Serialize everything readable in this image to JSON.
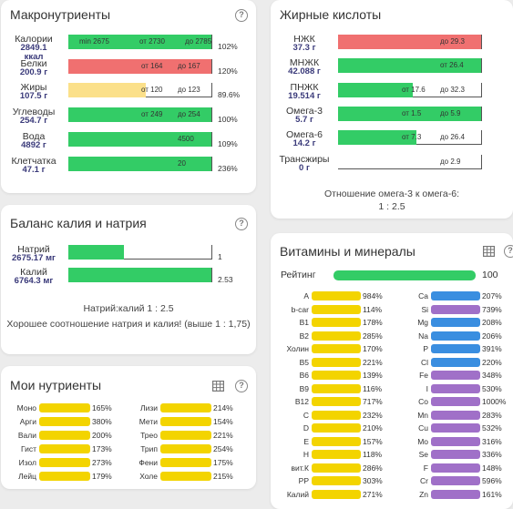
{
  "colors": {
    "green": "#33cc66",
    "red": "#f07070",
    "yellow": "#fbe08a",
    "blue": "#3a8ee0",
    "purple": "#a070c8",
    "vit_yellow": "#f3d400"
  },
  "macro": {
    "title": "Макронутриенты",
    "rows": [
      {
        "name": "Калории",
        "value": "2849.1 ккал",
        "value1": "2849.1",
        "value2": "ккал",
        "fill": 1.0,
        "color": "green",
        "texts": [
          "min 2675",
          "от 2730",
          "до 2785"
        ],
        "pct": "102%"
      },
      {
        "name": "Белки",
        "value": "200.9 г",
        "fill": 1.0,
        "color": "red",
        "texts": [
          "от 164",
          "до 167"
        ],
        "pct": "120%"
      },
      {
        "name": "Жиры",
        "value": "107.5 г",
        "fill": 0.54,
        "color": "yellow",
        "texts": [
          "от 120",
          "до 123"
        ],
        "pct": "89.6%"
      },
      {
        "name": "Углеводы",
        "value": "254.7 г",
        "fill": 1.0,
        "color": "green",
        "texts": [
          "от 249",
          "до 254"
        ],
        "pct": "100%"
      },
      {
        "name": "Вода",
        "value": "4892 г",
        "fill": 1.0,
        "color": "green",
        "texts": [
          "4500"
        ],
        "pct": "109%"
      },
      {
        "name": "Клетчатка",
        "value": "47.1 г",
        "fill": 1.0,
        "color": "green",
        "texts": [
          "20"
        ],
        "pct": "236%"
      }
    ]
  },
  "fatty": {
    "title": "Жирные кислоты",
    "rows": [
      {
        "name": "НЖК",
        "value": "37.3 г",
        "fill": 1.0,
        "color": "red",
        "texts": [
          "до 29.3"
        ]
      },
      {
        "name": "МНЖК",
        "value": "42.088 г",
        "fill": 1.0,
        "color": "green",
        "texts": [
          "от 26.4"
        ]
      },
      {
        "name": "ПНЖК",
        "value": "19.514 г",
        "fill": 0.52,
        "color": "green",
        "texts": [
          "от 17.6",
          "до 32.3"
        ]
      },
      {
        "name": "Омега-3",
        "value": "5.7 г",
        "fill": 1.0,
        "color": "green",
        "texts": [
          "от 1.5",
          "до 5.9"
        ]
      },
      {
        "name": "Омега-6",
        "value": "14.2 г",
        "fill": 0.55,
        "color": "green",
        "texts": [
          "от 7.3",
          "до 26.4"
        ]
      },
      {
        "name": "Трансжиры",
        "value": "0 г",
        "fill": 0.0,
        "color": "green",
        "texts": [
          "до 2.9"
        ]
      }
    ],
    "ratio_label": "Отношение омега-3 к омега-6:",
    "ratio_value": "1 : 2.5"
  },
  "kna": {
    "title": "Баланс калия и натрия",
    "rows": [
      {
        "name": "Натрий",
        "value": "2675.17 мг",
        "fill": 0.39,
        "color": "green",
        "pct": "1"
      },
      {
        "name": "Калий",
        "value": "6764.3 мг",
        "fill": 1.0,
        "color": "green",
        "pct": "2.53"
      }
    ],
    "ratio": "Натрий:калий 1 : 2.5",
    "note": "Хорошее соотношение натрия и калия! (выше 1 : 1,75)"
  },
  "my": {
    "title": "Мои нутриенты",
    "left": [
      {
        "name": "Моно",
        "pct": "165%"
      },
      {
        "name": "Арги",
        "pct": "380%"
      },
      {
        "name": "Вали",
        "pct": "200%"
      },
      {
        "name": "Гист",
        "pct": "173%"
      },
      {
        "name": "Изол",
        "pct": "273%"
      },
      {
        "name": "Лейц",
        "pct": "179%"
      }
    ],
    "right": [
      {
        "name": "Лизи",
        "pct": "214%"
      },
      {
        "name": "Мети",
        "pct": "154%"
      },
      {
        "name": "Трео",
        "pct": "221%"
      },
      {
        "name": "Трип",
        "pct": "254%"
      },
      {
        "name": "Фени",
        "pct": "175%"
      },
      {
        "name": "Холе",
        "pct": "215%"
      }
    ]
  },
  "vit": {
    "title": "Витамины и минералы",
    "rating_label": "Рейтинг",
    "rating_value": "100",
    "left": [
      {
        "name": "A",
        "pct": "984%"
      },
      {
        "name": "b-car",
        "pct": "114%"
      },
      {
        "name": "B1",
        "pct": "178%"
      },
      {
        "name": "B2",
        "pct": "285%"
      },
      {
        "name": "Холин",
        "pct": "170%"
      },
      {
        "name": "B5",
        "pct": "221%"
      },
      {
        "name": "B6",
        "pct": "139%"
      },
      {
        "name": "B9",
        "pct": "116%"
      },
      {
        "name": "B12",
        "pct": "717%"
      },
      {
        "name": "C",
        "pct": "232%"
      },
      {
        "name": "D",
        "pct": "210%"
      },
      {
        "name": "E",
        "pct": "157%"
      },
      {
        "name": "H",
        "pct": "118%"
      },
      {
        "name": "вит.К",
        "pct": "286%"
      },
      {
        "name": "PP",
        "pct": "303%"
      },
      {
        "name": "Калий",
        "pct": "271%"
      }
    ],
    "right": [
      {
        "name": "Ca",
        "pct": "207%",
        "color": "blue"
      },
      {
        "name": "Si",
        "pct": "739%",
        "color": "purple"
      },
      {
        "name": "Mg",
        "pct": "208%",
        "color": "blue"
      },
      {
        "name": "Na",
        "pct": "206%",
        "color": "blue"
      },
      {
        "name": "P",
        "pct": "391%",
        "color": "blue"
      },
      {
        "name": "Cl",
        "pct": "220%",
        "color": "blue"
      },
      {
        "name": "Fe",
        "pct": "348%",
        "color": "purple"
      },
      {
        "name": "I",
        "pct": "530%",
        "color": "purple"
      },
      {
        "name": "Co",
        "pct": "1000%",
        "color": "purple"
      },
      {
        "name": "Mn",
        "pct": "283%",
        "color": "purple"
      },
      {
        "name": "Cu",
        "pct": "532%",
        "color": "purple"
      },
      {
        "name": "Mo",
        "pct": "316%",
        "color": "purple"
      },
      {
        "name": "Se",
        "pct": "336%",
        "color": "purple"
      },
      {
        "name": "F",
        "pct": "148%",
        "color": "purple"
      },
      {
        "name": "Cr",
        "pct": "596%",
        "color": "purple"
      },
      {
        "name": "Zn",
        "pct": "161%",
        "color": "purple"
      }
    ]
  }
}
